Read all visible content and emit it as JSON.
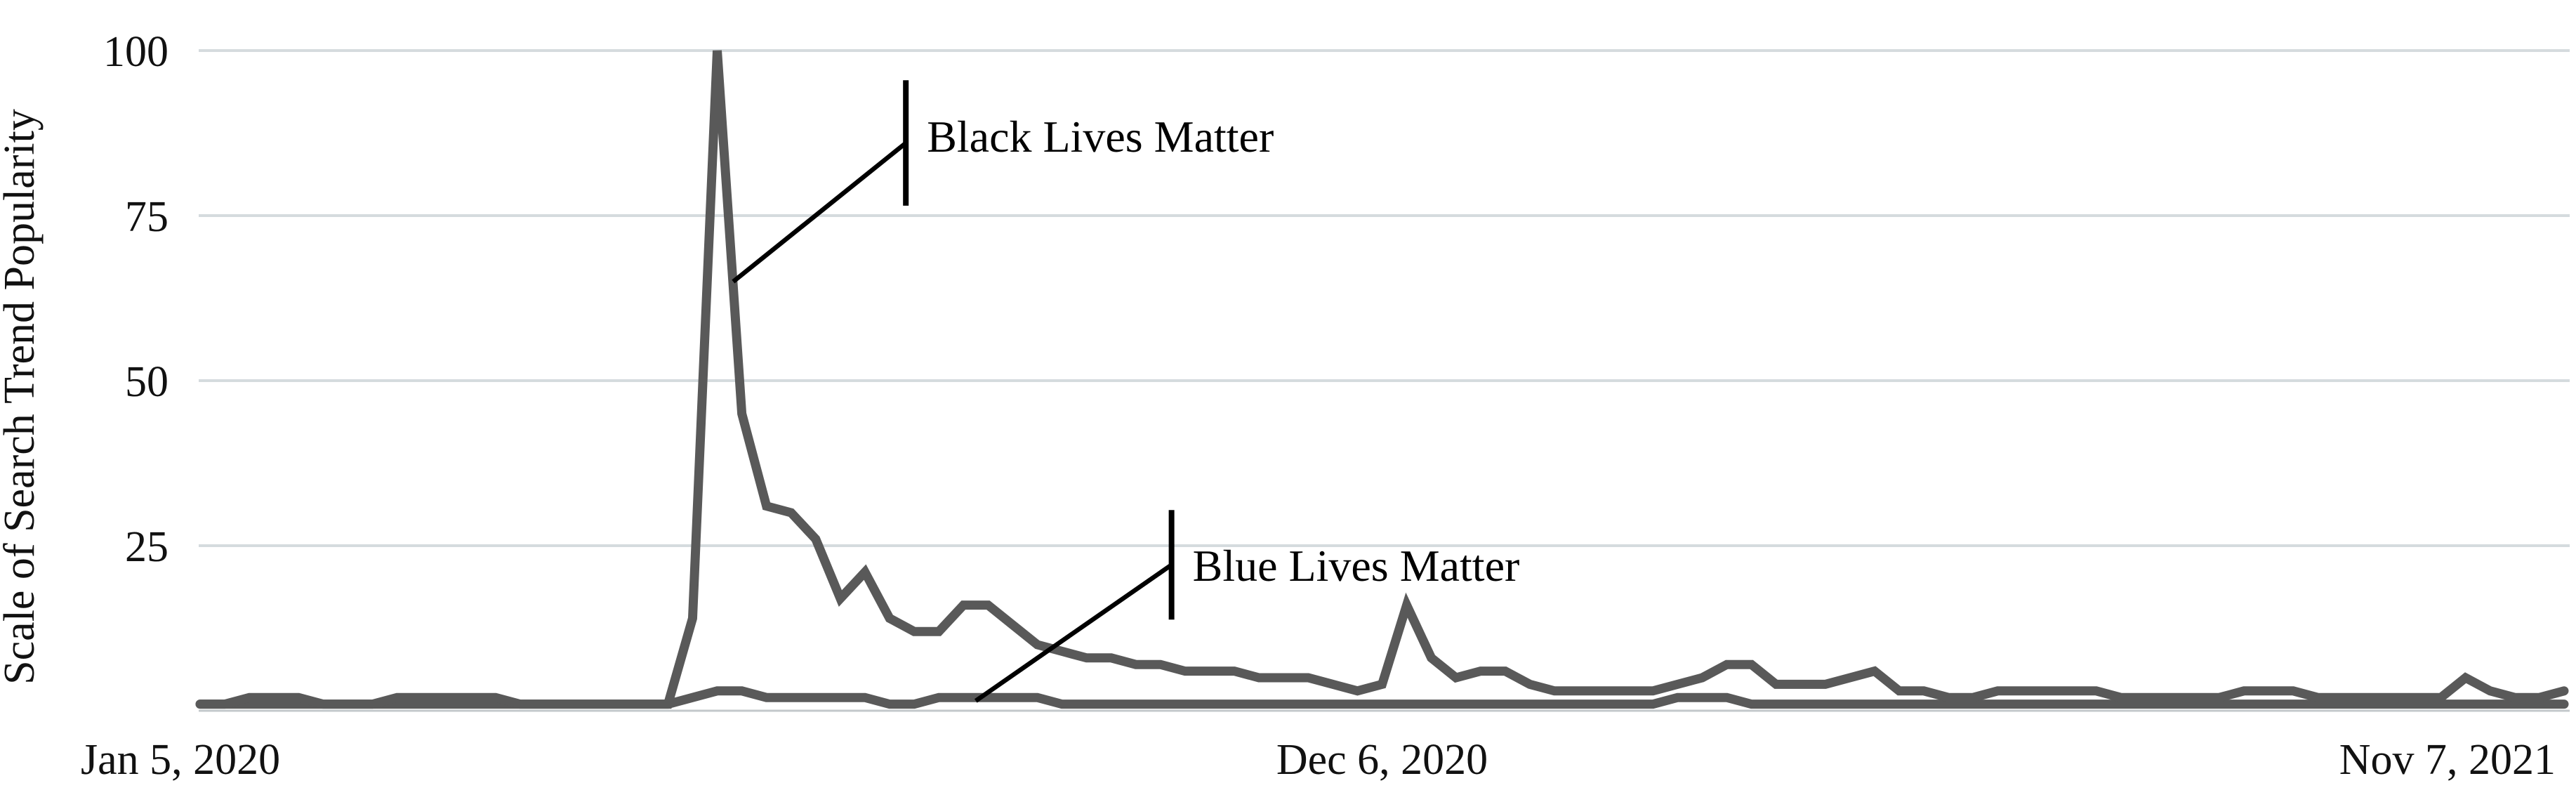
{
  "colors": {
    "series_line": "#595959",
    "gridline": "#d5dbde",
    "axis_line": "#c3c8cb",
    "text": "#111111",
    "annotation": "#000000"
  },
  "chart_data": {
    "type": "line",
    "title": "",
    "xlabel": "",
    "ylabel": "Scale of Search Trend Popularity",
    "ylim": [
      0,
      100
    ],
    "y_ticks": [
      100,
      75,
      50,
      25
    ],
    "grid": "horizontal only",
    "legend": "none (direct line callouts)",
    "x_unit": "week (weekly points, Jan 5 2020 to Nov 7 2021)",
    "n_points": 97,
    "x_ticks": [
      {
        "label": "Jan 5, 2020",
        "week": 0,
        "align": "start"
      },
      {
        "label": "Dec 6, 2020",
        "week": 48,
        "align": "middle"
      },
      {
        "label": "Nov 7, 2021",
        "week": 96,
        "align": "end"
      }
    ],
    "series": [
      {
        "name": "Black Lives Matter",
        "values": [
          1,
          1,
          2,
          2,
          2,
          1,
          1,
          1,
          2,
          2,
          2,
          2,
          2,
          1,
          1,
          1,
          1,
          1,
          1,
          1,
          14,
          100,
          45,
          31,
          30,
          26,
          17,
          21,
          14,
          12,
          12,
          16,
          16,
          13,
          10,
          9,
          8,
          8,
          7,
          7,
          6,
          6,
          6,
          5,
          5,
          5,
          4,
          3,
          4,
          16,
          8,
          5,
          6,
          6,
          4,
          3,
          3,
          3,
          3,
          3,
          4,
          5,
          7,
          7,
          4,
          4,
          4,
          5,
          6,
          3,
          3,
          2,
          2,
          3,
          3,
          3,
          3,
          3,
          2,
          2,
          2,
          2,
          2,
          3,
          3,
          3,
          2,
          2,
          2,
          2,
          2,
          2,
          5,
          3,
          2,
          2,
          3
        ]
      },
      {
        "name": "Blue Lives Matter",
        "values": [
          1,
          1,
          1,
          1,
          1,
          1,
          1,
          1,
          1,
          1,
          1,
          1,
          1,
          1,
          1,
          1,
          1,
          1,
          1,
          1,
          2,
          3,
          3,
          2,
          2,
          2,
          2,
          2,
          1,
          1,
          2,
          2,
          2,
          2,
          2,
          1,
          1,
          1,
          1,
          1,
          1,
          1,
          1,
          1,
          1,
          1,
          1,
          1,
          1,
          1,
          1,
          1,
          1,
          1,
          1,
          1,
          1,
          1,
          1,
          1,
          2,
          2,
          2,
          1,
          1,
          1,
          1,
          1,
          1,
          1,
          1,
          1,
          1,
          1,
          1,
          1,
          1,
          1,
          1,
          1,
          1,
          1,
          1,
          1,
          1,
          1,
          1,
          1,
          1,
          1,
          1,
          1,
          1,
          1,
          1,
          1,
          1
        ]
      }
    ],
    "annotations": [
      {
        "text": "Black Lives Matter",
        "attach_week": 21.65,
        "attach_value": 65,
        "bar_week": 28.66,
        "bar_top_value": 95.5,
        "bar_bottom_value": 76.5,
        "text_value": 87
      },
      {
        "text": "Blue Lives Matter",
        "attach_week": 31.5,
        "attach_value": 1.5,
        "bar_week": 39.45,
        "bar_top_value": 30.4,
        "bar_bottom_value": 13.8,
        "text_value": 22
      }
    ]
  }
}
